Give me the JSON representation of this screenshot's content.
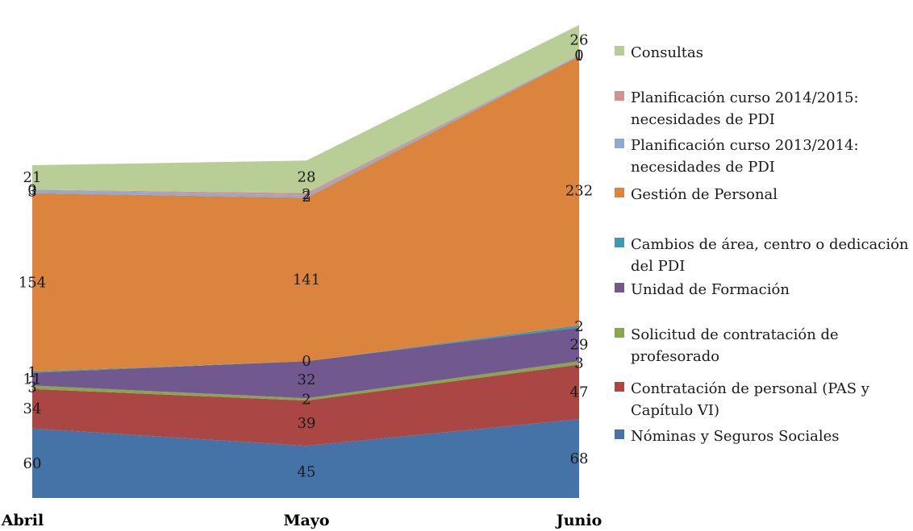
{
  "chart_data": {
    "type": "area",
    "stacked": true,
    "categories": [
      "Abril",
      "Mayo",
      "Junio"
    ],
    "series": [
      {
        "name": "Nóminas y Seguros Sociales",
        "values": [
          60,
          45,
          68
        ],
        "color": "#4572A7"
      },
      {
        "name": "Contratación de personal (PAS y Capítulo VI)",
        "values": [
          34,
          39,
          47
        ],
        "color": "#AA4643"
      },
      {
        "name": "Solicitud de contratación de profesorado",
        "values": [
          3,
          2,
          3
        ],
        "color": "#89A54E"
      },
      {
        "name": "Unidad de Formación",
        "values": [
          11,
          32,
          29
        ],
        "color": "#71588F"
      },
      {
        "name": "Cambios de área, centro o dedicación del PDI",
        "values": [
          1,
          0,
          2
        ],
        "color": "#4198AF"
      },
      {
        "name": "Gestión de Personal",
        "values": [
          154,
          141,
          232
        ],
        "color": "#DB843D"
      },
      {
        "name": "Planificación curso 2013/2014: necesidades de PDI",
        "values": [
          3,
          2,
          1
        ],
        "color": "#93A9CF"
      },
      {
        "name": "Planificación curso 2014/2015: necesidades de PDI",
        "values": [
          0,
          2,
          0
        ],
        "color": "#D19392"
      },
      {
        "name": "Consultas",
        "values": [
          21,
          28,
          26
        ],
        "color": "#B9CD96"
      }
    ],
    "ylim": [
      0,
      417
    ],
    "grid": false,
    "legend_position": "right"
  }
}
